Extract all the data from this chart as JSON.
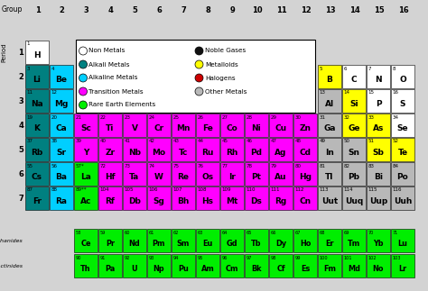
{
  "bg": "#d3d3d3",
  "color_map": {
    "nonmetal": "#ffffff",
    "alkali": "#008080",
    "alkaline": "#00cfff",
    "transition": "#ff00ff",
    "metalloid": "#ffff00",
    "other_metal": "#b8b8b8",
    "rare_earth": "#00ee00",
    "H": "#ffffff"
  },
  "elements": [
    {
      "symbol": "H",
      "number": "1",
      "period": 1,
      "group": 1,
      "type": "H"
    },
    {
      "symbol": "Li",
      "number": "3",
      "period": 2,
      "group": 1,
      "type": "alkali"
    },
    {
      "symbol": "Be",
      "number": "4",
      "period": 2,
      "group": 2,
      "type": "alkaline"
    },
    {
      "symbol": "Na",
      "number": "11",
      "period": 3,
      "group": 1,
      "type": "alkali"
    },
    {
      "symbol": "Mg",
      "number": "12",
      "period": 3,
      "group": 2,
      "type": "alkaline"
    },
    {
      "symbol": "K",
      "number": "19",
      "period": 4,
      "group": 1,
      "type": "alkali"
    },
    {
      "symbol": "Ca",
      "number": "20",
      "period": 4,
      "group": 2,
      "type": "alkaline"
    },
    {
      "symbol": "Sc",
      "number": "21",
      "period": 4,
      "group": 3,
      "type": "transition"
    },
    {
      "symbol": "Ti",
      "number": "22",
      "period": 4,
      "group": 4,
      "type": "transition"
    },
    {
      "symbol": "V",
      "number": "23",
      "period": 4,
      "group": 5,
      "type": "transition"
    },
    {
      "symbol": "Cr",
      "number": "24",
      "period": 4,
      "group": 6,
      "type": "transition"
    },
    {
      "symbol": "Mn",
      "number": "25",
      "period": 4,
      "group": 7,
      "type": "transition"
    },
    {
      "symbol": "Fe",
      "number": "26",
      "period": 4,
      "group": 8,
      "type": "transition"
    },
    {
      "symbol": "Co",
      "number": "27",
      "period": 4,
      "group": 9,
      "type": "transition"
    },
    {
      "symbol": "Ni",
      "number": "28",
      "period": 4,
      "group": 10,
      "type": "transition"
    },
    {
      "symbol": "Cu",
      "number": "29",
      "period": 4,
      "group": 11,
      "type": "transition"
    },
    {
      "symbol": "Zn",
      "number": "30",
      "period": 4,
      "group": 12,
      "type": "transition"
    },
    {
      "symbol": "Ga",
      "number": "31",
      "period": 4,
      "group": 13,
      "type": "other_metal"
    },
    {
      "symbol": "Ge",
      "number": "32",
      "period": 4,
      "group": 14,
      "type": "metalloid"
    },
    {
      "symbol": "As",
      "number": "33",
      "period": 4,
      "group": 15,
      "type": "metalloid"
    },
    {
      "symbol": "Se",
      "number": "34",
      "period": 4,
      "group": 16,
      "type": "nonmetal"
    },
    {
      "symbol": "Rb",
      "number": "37",
      "period": 5,
      "group": 1,
      "type": "alkali"
    },
    {
      "symbol": "Sr",
      "number": "38",
      "period": 5,
      "group": 2,
      "type": "alkaline"
    },
    {
      "symbol": "Y",
      "number": "39",
      "period": 5,
      "group": 3,
      "type": "transition"
    },
    {
      "symbol": "Zr",
      "number": "40",
      "period": 5,
      "group": 4,
      "type": "transition"
    },
    {
      "symbol": "Nb",
      "number": "41",
      "period": 5,
      "group": 5,
      "type": "transition"
    },
    {
      "symbol": "Mo",
      "number": "42",
      "period": 5,
      "group": 6,
      "type": "transition"
    },
    {
      "symbol": "Tc",
      "number": "43",
      "period": 5,
      "group": 7,
      "type": "transition"
    },
    {
      "symbol": "Ru",
      "number": "44",
      "period": 5,
      "group": 8,
      "type": "transition"
    },
    {
      "symbol": "Rh",
      "number": "45",
      "period": 5,
      "group": 9,
      "type": "transition"
    },
    {
      "symbol": "Pd",
      "number": "46",
      "period": 5,
      "group": 10,
      "type": "transition"
    },
    {
      "symbol": "Ag",
      "number": "47",
      "period": 5,
      "group": 11,
      "type": "transition"
    },
    {
      "symbol": "Cd",
      "number": "48",
      "period": 5,
      "group": 12,
      "type": "transition"
    },
    {
      "symbol": "In",
      "number": "49",
      "period": 5,
      "group": 13,
      "type": "other_metal"
    },
    {
      "symbol": "Sn",
      "number": "50",
      "period": 5,
      "group": 14,
      "type": "other_metal"
    },
    {
      "symbol": "Sb",
      "number": "51",
      "period": 5,
      "group": 15,
      "type": "metalloid"
    },
    {
      "symbol": "Te",
      "number": "52",
      "period": 5,
      "group": 16,
      "type": "metalloid"
    },
    {
      "symbol": "Cs",
      "number": "55",
      "period": 6,
      "group": 1,
      "type": "alkali"
    },
    {
      "symbol": "Ba",
      "number": "56",
      "period": 6,
      "group": 2,
      "type": "alkaline"
    },
    {
      "symbol": "La",
      "number": "57*",
      "period": 6,
      "group": 3,
      "type": "rare_earth"
    },
    {
      "symbol": "Hf",
      "number": "72",
      "period": 6,
      "group": 4,
      "type": "transition"
    },
    {
      "symbol": "Ta",
      "number": "73",
      "period": 6,
      "group": 5,
      "type": "transition"
    },
    {
      "symbol": "W",
      "number": "74",
      "period": 6,
      "group": 6,
      "type": "transition"
    },
    {
      "symbol": "Re",
      "number": "75",
      "period": 6,
      "group": 7,
      "type": "transition"
    },
    {
      "symbol": "Os",
      "number": "76",
      "period": 6,
      "group": 8,
      "type": "transition"
    },
    {
      "symbol": "Ir",
      "number": "77",
      "period": 6,
      "group": 9,
      "type": "transition"
    },
    {
      "symbol": "Pt",
      "number": "78",
      "period": 6,
      "group": 10,
      "type": "transition"
    },
    {
      "symbol": "Au",
      "number": "79",
      "period": 6,
      "group": 11,
      "type": "transition"
    },
    {
      "symbol": "Hg",
      "number": "80",
      "period": 6,
      "group": 12,
      "type": "transition"
    },
    {
      "symbol": "Tl",
      "number": "81",
      "period": 6,
      "group": 13,
      "type": "other_metal"
    },
    {
      "symbol": "Pb",
      "number": "82",
      "period": 6,
      "group": 14,
      "type": "other_metal"
    },
    {
      "symbol": "Bi",
      "number": "83",
      "period": 6,
      "group": 15,
      "type": "other_metal"
    },
    {
      "symbol": "Po",
      "number": "84",
      "period": 6,
      "group": 16,
      "type": "other_metal"
    },
    {
      "symbol": "Fr",
      "number": "87",
      "period": 7,
      "group": 1,
      "type": "alkali"
    },
    {
      "symbol": "Ra",
      "number": "88",
      "period": 7,
      "group": 2,
      "type": "alkaline"
    },
    {
      "symbol": "Ac",
      "number": "89**",
      "period": 7,
      "group": 3,
      "type": "rare_earth"
    },
    {
      "symbol": "Rf",
      "number": "104",
      "period": 7,
      "group": 4,
      "type": "transition"
    },
    {
      "symbol": "Db",
      "number": "105",
      "period": 7,
      "group": 5,
      "type": "transition"
    },
    {
      "symbol": "Sg",
      "number": "106",
      "period": 7,
      "group": 6,
      "type": "transition"
    },
    {
      "symbol": "Bh",
      "number": "107",
      "period": 7,
      "group": 7,
      "type": "transition"
    },
    {
      "symbol": "Hs",
      "number": "108",
      "period": 7,
      "group": 8,
      "type": "transition"
    },
    {
      "symbol": "Mt",
      "number": "109",
      "period": 7,
      "group": 9,
      "type": "transition"
    },
    {
      "symbol": "Ds",
      "number": "110",
      "period": 7,
      "group": 10,
      "type": "transition"
    },
    {
      "symbol": "Rg",
      "number": "111",
      "period": 7,
      "group": 11,
      "type": "transition"
    },
    {
      "symbol": "Cn",
      "number": "112",
      "period": 7,
      "group": 12,
      "type": "transition"
    },
    {
      "symbol": "Uut",
      "number": "113",
      "period": 7,
      "group": 13,
      "type": "other_metal"
    },
    {
      "symbol": "Uuq",
      "number": "114",
      "period": 7,
      "group": 14,
      "type": "other_metal"
    },
    {
      "symbol": "Uup",
      "number": "115",
      "period": 7,
      "group": 15,
      "type": "other_metal"
    },
    {
      "symbol": "Uuh",
      "number": "116",
      "period": 7,
      "group": 16,
      "type": "other_metal"
    },
    {
      "symbol": "B",
      "number": "5",
      "period": 2,
      "group": 13,
      "type": "metalloid"
    },
    {
      "symbol": "C",
      "number": "6",
      "period": 2,
      "group": 14,
      "type": "nonmetal"
    },
    {
      "symbol": "N",
      "number": "7",
      "period": 2,
      "group": 15,
      "type": "nonmetal"
    },
    {
      "symbol": "O",
      "number": "8",
      "period": 2,
      "group": 16,
      "type": "nonmetal"
    },
    {
      "symbol": "Al",
      "number": "13",
      "period": 3,
      "group": 13,
      "type": "other_metal"
    },
    {
      "symbol": "Si",
      "number": "14",
      "period": 3,
      "group": 14,
      "type": "metalloid"
    },
    {
      "symbol": "P",
      "number": "15",
      "period": 3,
      "group": 15,
      "type": "nonmetal"
    },
    {
      "symbol": "S",
      "number": "16",
      "period": 3,
      "group": 16,
      "type": "nonmetal"
    }
  ],
  "lanthanides": [
    {
      "symbol": "Ce",
      "number": "58"
    },
    {
      "symbol": "Pr",
      "number": "59"
    },
    {
      "symbol": "Nd",
      "number": "60"
    },
    {
      "symbol": "Pm",
      "number": "61"
    },
    {
      "symbol": "Sm",
      "number": "62"
    },
    {
      "symbol": "Eu",
      "number": "63"
    },
    {
      "symbol": "Gd",
      "number": "64"
    },
    {
      "symbol": "Tb",
      "number": "65"
    },
    {
      "symbol": "Dy",
      "number": "66"
    },
    {
      "symbol": "Ho",
      "number": "67"
    },
    {
      "symbol": "Er",
      "number": "68"
    },
    {
      "symbol": "Tm",
      "number": "69"
    },
    {
      "symbol": "Yb",
      "number": "70"
    },
    {
      "symbol": "Lu",
      "number": "71"
    }
  ],
  "actinides": [
    {
      "symbol": "Th",
      "number": "90"
    },
    {
      "symbol": "Pa",
      "number": "91"
    },
    {
      "symbol": "U",
      "number": "92"
    },
    {
      "symbol": "Np",
      "number": "93"
    },
    {
      "symbol": "Pu",
      "number": "94"
    },
    {
      "symbol": "Am",
      "number": "95"
    },
    {
      "symbol": "Cm",
      "number": "96"
    },
    {
      "symbol": "Bk",
      "number": "97"
    },
    {
      "symbol": "Cf",
      "number": "98"
    },
    {
      "symbol": "Es",
      "number": "99"
    },
    {
      "symbol": "Fm",
      "number": "100"
    },
    {
      "symbol": "Md",
      "number": "101"
    },
    {
      "symbol": "No",
      "number": "102"
    },
    {
      "symbol": "Lr",
      "number": "103"
    }
  ],
  "legend_left": [
    {
      "label": "Non Metals",
      "type": "nonmetal",
      "filled": false
    },
    {
      "label": "Alkali Metals",
      "type": "alkali",
      "filled": true
    },
    {
      "label": "Alkaline Metals",
      "type": "alkaline",
      "filled": true
    },
    {
      "label": "Transition Metals",
      "type": "transition",
      "filled": true
    },
    {
      "label": "Rare Earth Elements",
      "type": "rare_earth",
      "filled": true
    }
  ],
  "legend_right": [
    {
      "label": "Noble Gases",
      "type": "noble",
      "filled": true
    },
    {
      "label": "Metalloids",
      "type": "metalloid",
      "filled": true
    },
    {
      "label": "Halogens",
      "type": "halogen",
      "filled": true
    },
    {
      "label": "Other Metals",
      "type": "other_metal",
      "filled": false
    }
  ],
  "legend_extra_colors": {
    "noble": "#111111",
    "halogen": "#cc0000"
  }
}
